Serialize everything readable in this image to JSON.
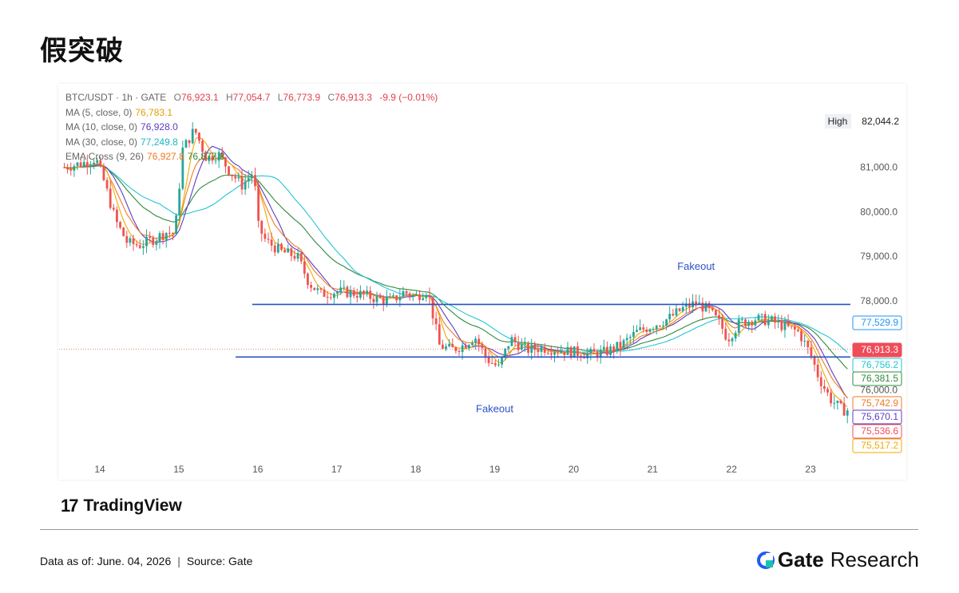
{
  "page": {
    "title": "假突破",
    "footer": {
      "data_as_of": "Data as of: June. 04, 2026",
      "separator": "|",
      "source": "Source:  Gate"
    },
    "brand": {
      "gate": "Gate",
      "research": "Research"
    },
    "tradingview_logo": {
      "mark": "17",
      "name": "TradingView"
    }
  },
  "legend": {
    "symbol": "BTC/USDT · 1h · GATE",
    "open_label": "O",
    "open": "76,923.1",
    "high_label": "H",
    "high": "77,054.7",
    "low_label": "L",
    "low": "76,773.9",
    "close_label": "C",
    "close": "76,913.3",
    "change": "-9.9 (−0.01%)",
    "ma5_label": "MA (5, close, 0)",
    "ma5": "76,783.1",
    "ma10_label": "MA (10, close, 0)",
    "ma10": "76,928.0",
    "ma30_label": "MA (30, close, 0)",
    "ma30": "77,249.8",
    "ema_label": "EMA Cross (9, 26)",
    "ema_fast": "76,927.8",
    "ema_slow": "76,877.8"
  },
  "colors": {
    "up": "#26a69a",
    "down": "#ef5350",
    "ma5": "#f2a900",
    "ma10": "#5b3cc4",
    "ma30": "#22c4d4",
    "ema_fast": "#f07a22",
    "ema_slow": "#2e8b3a",
    "level": "#2851c7",
    "annotation": "#2c52c9"
  },
  "chart_data": {
    "type": "candlestick",
    "xlabel": "",
    "ylabel": "",
    "x_ticks": [
      "14",
      "15",
      "16",
      "17",
      "18",
      "19",
      "20",
      "21",
      "22",
      "23"
    ],
    "y_ticks": [
      "81,000.0",
      "80,000.0",
      "79,000.0",
      "78,000.0",
      "76,000.0"
    ],
    "ylim": [
      75300,
      82400
    ],
    "high_marker": {
      "label": "High",
      "value": "82,044.2"
    },
    "price_tags": [
      {
        "value": 77529.9,
        "text": "77,529.9",
        "color": "#2196f3",
        "style": "outline"
      },
      {
        "value": 76913.3,
        "text": "76,913.3",
        "color": "#ef4c5a",
        "style": "fill"
      },
      {
        "value": 76756.2,
        "text": "76,756.2",
        "color": "#22c4d4",
        "style": "outline"
      },
      {
        "value": 76381.5,
        "text": "76,381.5",
        "color": "#2e8b3a",
        "style": "outline"
      },
      {
        "value": 75742.9,
        "text": "75,742.9",
        "color": "#f07a22",
        "style": "outline"
      },
      {
        "value": 75670.1,
        "text": "75,670.1",
        "color": "#5b3cc4",
        "style": "outline"
      },
      {
        "value": 75536.6,
        "text": "75,536.6",
        "color": "#ef4c5a",
        "style": "outline"
      },
      {
        "value": 75517.2,
        "text": "75,517.2",
        "color": "#f2a900",
        "style": "outline"
      }
    ],
    "levels": [
      {
        "value": 77920,
        "start_day": 15.93
      },
      {
        "value": 76740,
        "start_day": 15.72
      }
    ],
    "annotations": [
      {
        "text": "Fakeout",
        "day": 21.55,
        "value": 78700
      },
      {
        "text": "Fakeout",
        "day": 19.0,
        "value": 75500
      }
    ],
    "close_path": [
      [
        13.55,
        81.0
      ],
      [
        13.8,
        81.1
      ],
      [
        13.95,
        81.2
      ],
      [
        14.05,
        80.7
      ],
      [
        14.2,
        79.8
      ],
      [
        14.35,
        79.3
      ],
      [
        14.5,
        79.25
      ],
      [
        14.7,
        79.4
      ],
      [
        14.85,
        79.55
      ],
      [
        14.95,
        79.5
      ],
      [
        15.05,
        81.4
      ],
      [
        15.2,
        81.85
      ],
      [
        15.35,
        81.2
      ],
      [
        15.5,
        81.3
      ],
      [
        15.65,
        80.9
      ],
      [
        15.8,
        80.6
      ],
      [
        15.95,
        80.9
      ],
      [
        16.0,
        79.7
      ],
      [
        16.1,
        79.35
      ],
      [
        16.3,
        79.1
      ],
      [
        16.5,
        79.0
      ],
      [
        16.65,
        78.4
      ],
      [
        16.8,
        78.15
      ],
      [
        16.95,
        78.2
      ],
      [
        17.1,
        78.2
      ],
      [
        17.3,
        78.15
      ],
      [
        17.5,
        78.05
      ],
      [
        17.7,
        78.0
      ],
      [
        17.85,
        78.2
      ],
      [
        18.0,
        78.1
      ],
      [
        18.15,
        78.25
      ],
      [
        18.3,
        77.0
      ],
      [
        18.45,
        76.9
      ],
      [
        18.6,
        77.0
      ],
      [
        18.75,
        77.2
      ],
      [
        18.9,
        76.7
      ],
      [
        19.05,
        76.5
      ],
      [
        19.2,
        77.15
      ],
      [
        19.4,
        76.9
      ],
      [
        19.6,
        76.95
      ],
      [
        19.8,
        76.9
      ],
      [
        20.0,
        76.85
      ],
      [
        20.2,
        76.8
      ],
      [
        20.4,
        76.85
      ],
      [
        20.6,
        77.0
      ],
      [
        20.8,
        77.3
      ],
      [
        21.0,
        77.45
      ],
      [
        21.2,
        77.6
      ],
      [
        21.4,
        77.85
      ],
      [
        21.55,
        77.95
      ],
      [
        21.7,
        77.8
      ],
      [
        21.85,
        77.5
      ],
      [
        21.95,
        77.15
      ],
      [
        22.1,
        77.5
      ],
      [
        22.3,
        77.6
      ],
      [
        22.5,
        77.55
      ],
      [
        22.7,
        77.4
      ],
      [
        22.85,
        77.3
      ],
      [
        23.0,
        76.8
      ],
      [
        23.1,
        76.3
      ],
      [
        23.25,
        75.8
      ],
      [
        23.4,
        75.55
      ],
      [
        23.5,
        75.55
      ]
    ],
    "series": [
      {
        "name": "MA (5, close, 0)",
        "value": 76783.1,
        "color": "#f2a900"
      },
      {
        "name": "MA (10, close, 0)",
        "value": 76928.0,
        "color": "#5b3cc4"
      },
      {
        "name": "MA (30, close, 0)",
        "value": 77249.8,
        "color": "#22c4d4"
      },
      {
        "name": "EMA Cross (9, 26)",
        "value": 76927.8,
        "color": "#f07a22"
      }
    ],
    "current_price": 76913.3,
    "grid": false
  }
}
